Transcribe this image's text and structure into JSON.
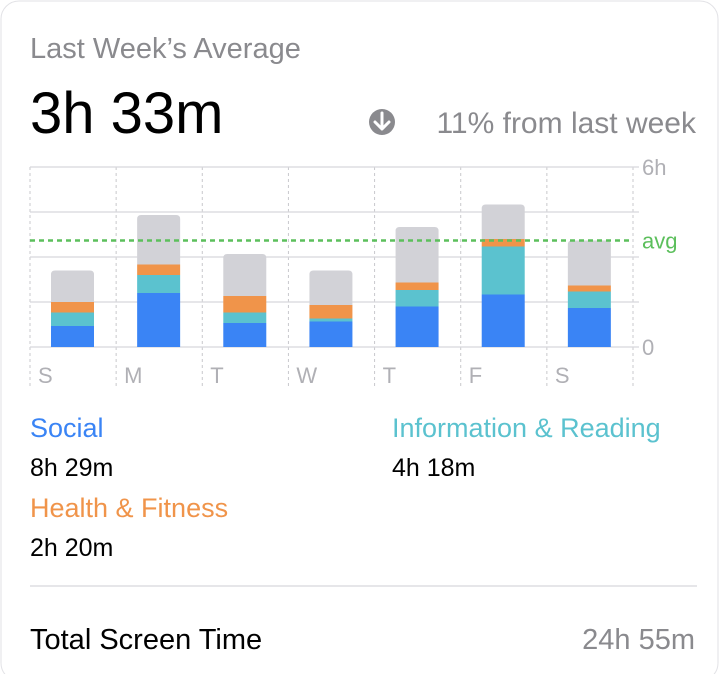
{
  "title": "Last Week’s Average",
  "headline": "3h 33m",
  "change": "11% from last week",
  "chart_data": {
    "type": "stacked-bar",
    "categories": [
      "S",
      "M",
      "T",
      "W",
      "T",
      "F",
      "S"
    ],
    "series": [
      {
        "name": "Social",
        "total": "8h 29m",
        "color": "#3a84f5",
        "values": [
          0.7,
          1.8,
          0.8,
          0.85,
          1.35,
          1.75,
          1.3
        ]
      },
      {
        "name": "Information & Reading",
        "total": "4h 18m",
        "color": "#5bc2cf",
        "values": [
          0.45,
          0.6,
          0.35,
          0.1,
          0.55,
          1.6,
          0.55
        ]
      },
      {
        "name": "Health & Fitness",
        "total": "2h 20m",
        "color": "#f0944a",
        "values": [
          0.35,
          0.35,
          0.55,
          0.45,
          0.25,
          0.25,
          0.2
        ]
      },
      {
        "color": "#d2d2d7",
        "values": [
          1.05,
          1.65,
          1.4,
          1.15,
          1.85,
          1.15,
          1.5
        ]
      }
    ],
    "ylim": [
      0,
      6
    ],
    "yticks": [
      0,
      {
        "value": 1.5,
        "label": null
      },
      {
        "value": 3,
        "label": null
      },
      {
        "value": 4.5,
        "label": null
      },
      {
        "value": 6,
        "label": "6h"
      }
    ],
    "avg": {
      "value": 3.55,
      "label": "avg",
      "color": "#5cbf5c"
    },
    "grid": true
  },
  "footer": {
    "label": "Total Screen Time",
    "value": "24h 55m"
  }
}
